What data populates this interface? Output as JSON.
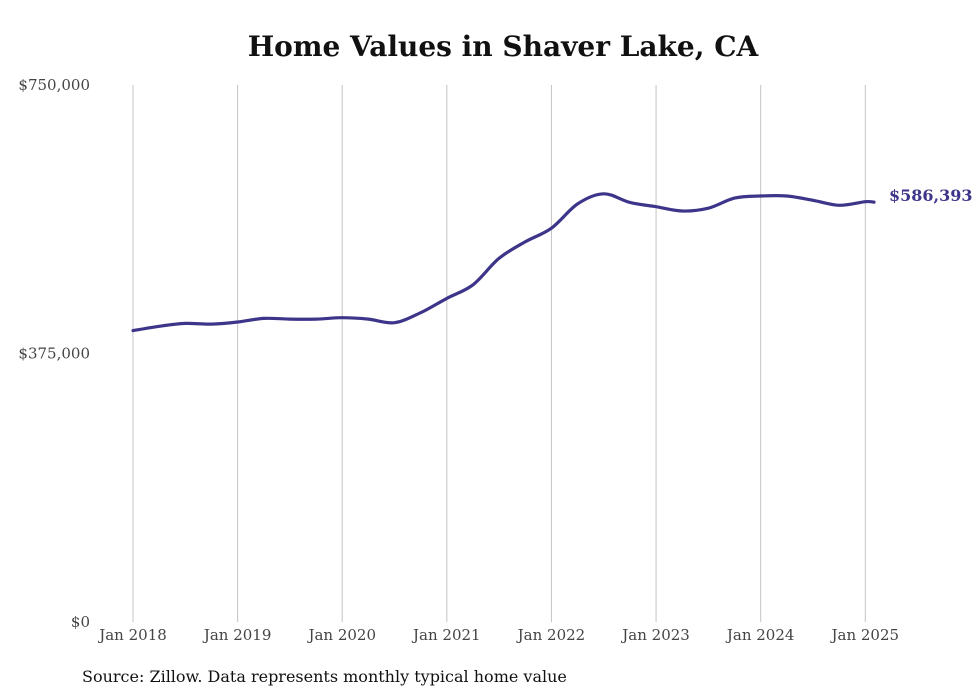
{
  "chart_data": {
    "type": "line",
    "title": "Home Values in Shaver Lake, CA",
    "source": "Source: Zillow. Data represents monthly typical home value",
    "ylim": [
      0,
      750000
    ],
    "y_ticks": [
      {
        "value": 0,
        "label": "$0"
      },
      {
        "value": 375000,
        "label": "$375,000"
      },
      {
        "value": 750000,
        "label": "$750,000"
      }
    ],
    "x_range": [
      "2018-01",
      "2025-02"
    ],
    "x_ticks": [
      {
        "value": "2018-01",
        "label": "Jan 2018"
      },
      {
        "value": "2019-01",
        "label": "Jan 2019"
      },
      {
        "value": "2020-01",
        "label": "Jan 2020"
      },
      {
        "value": "2021-01",
        "label": "Jan 2021"
      },
      {
        "value": "2022-01",
        "label": "Jan 2022"
      },
      {
        "value": "2023-01",
        "label": "Jan 2023"
      },
      {
        "value": "2024-01",
        "label": "Jan 2024"
      },
      {
        "value": "2025-01",
        "label": "Jan 2025"
      }
    ],
    "grid": {
      "vertical": true,
      "horizontal": false
    },
    "line_color": "#3d3589",
    "end_label": "$586,393",
    "series": [
      {
        "values": [
          {
            "x": "2018-01",
            "y": 407000
          },
          {
            "x": "2018-04",
            "y": 413000
          },
          {
            "x": "2018-07",
            "y": 417000
          },
          {
            "x": "2018-10",
            "y": 416000
          },
          {
            "x": "2019-01",
            "y": 419000
          },
          {
            "x": "2019-04",
            "y": 424000
          },
          {
            "x": "2019-07",
            "y": 423000
          },
          {
            "x": "2019-10",
            "y": 423000
          },
          {
            "x": "2020-01",
            "y": 425000
          },
          {
            "x": "2020-04",
            "y": 423000
          },
          {
            "x": "2020-07",
            "y": 418000
          },
          {
            "x": "2020-10",
            "y": 432000
          },
          {
            "x": "2021-01",
            "y": 452000
          },
          {
            "x": "2021-04",
            "y": 471000
          },
          {
            "x": "2021-07",
            "y": 508000
          },
          {
            "x": "2021-10",
            "y": 531000
          },
          {
            "x": "2022-01",
            "y": 550000
          },
          {
            "x": "2022-04",
            "y": 584000
          },
          {
            "x": "2022-07",
            "y": 598000
          },
          {
            "x": "2022-10",
            "y": 586000
          },
          {
            "x": "2023-01",
            "y": 580000
          },
          {
            "x": "2023-04",
            "y": 574000
          },
          {
            "x": "2023-07",
            "y": 578000
          },
          {
            "x": "2023-10",
            "y": 592000
          },
          {
            "x": "2024-01",
            "y": 595000
          },
          {
            "x": "2024-04",
            "y": 595000
          },
          {
            "x": "2024-07",
            "y": 589000
          },
          {
            "x": "2024-10",
            "y": 582000
          },
          {
            "x": "2025-01",
            "y": 587000
          },
          {
            "x": "2025-02",
            "y": 586393
          }
        ]
      }
    ]
  }
}
